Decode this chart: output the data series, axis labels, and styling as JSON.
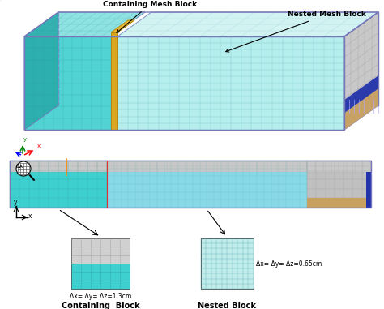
{
  "bg_color": "#ffffff",
  "label_containing_mesh": "Containing Mesh Block",
  "label_nested_mesh": "Nested Mesh Block",
  "label_containing_block": "Containing  Block",
  "label_nested_block": "Nested Block",
  "label_dx_containing": "Δx= Δy= Δz=1.3cm",
  "label_dx_nested": "Δx= Δy= Δz=0.65cm",
  "color_teal": "#3ECFCF",
  "color_teal_dark": "#2AACAC",
  "color_teal_top": "#7ADDDD",
  "color_nested_face": "#AAEAEA",
  "color_nested_top": "#C8F0F0",
  "color_nested_side": "#B8E8E8",
  "color_blue_outline": "#7777BB",
  "color_gray": "#BBBBBB",
  "color_gray_dark": "#999999",
  "color_gold": "#DAA520",
  "color_gold_dark": "#B88A10",
  "color_brown": "#C8A060",
  "color_blue_dark": "#2233AA",
  "color_red_line": "#DD3333",
  "color_orange_line": "#FF8800",
  "color_white": "#FFFFFF"
}
